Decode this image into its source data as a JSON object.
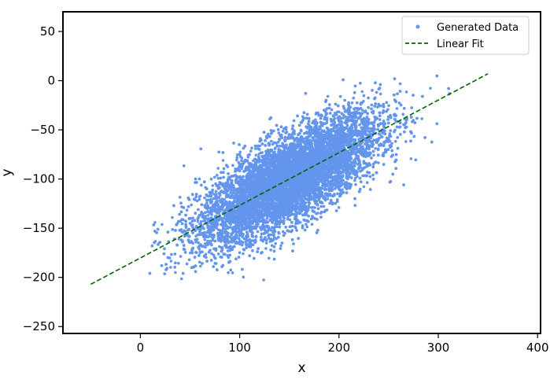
{
  "chart_data": {
    "type": "scatter",
    "title": "",
    "xlabel": "x",
    "ylabel": "y",
    "xlim": [
      -78,
      403
    ],
    "ylim": [
      -257,
      70
    ],
    "xticks": [
      0,
      100,
      200,
      300,
      400
    ],
    "yticks": [
      -250,
      -200,
      -150,
      -100,
      -50,
      0,
      50
    ],
    "xtick_labels": [
      "0",
      "100",
      "200",
      "300",
      "400"
    ],
    "ytick_labels": [
      "−250",
      "−200",
      "−150",
      "−100",
      "−50",
      "0",
      "50"
    ],
    "grid": false,
    "legend_position": "top-right",
    "series": [
      {
        "name": "Generated Data",
        "kind": "scatter",
        "color": "#6495ED",
        "distribution": {
          "n": 12000,
          "x_mean": 150,
          "x_sd": 45,
          "y_intercept": -180,
          "y_slope": 0.53,
          "y_residual_sd": 22
        },
        "x_range": [
          0,
          320
        ],
        "y_range": [
          -205,
          15
        ]
      },
      {
        "name": "Linear Fit",
        "kind": "line",
        "color": "#006400",
        "style": "dashed",
        "x": [
          -50,
          350
        ],
        "y": [
          -207,
          7
        ]
      }
    ]
  }
}
